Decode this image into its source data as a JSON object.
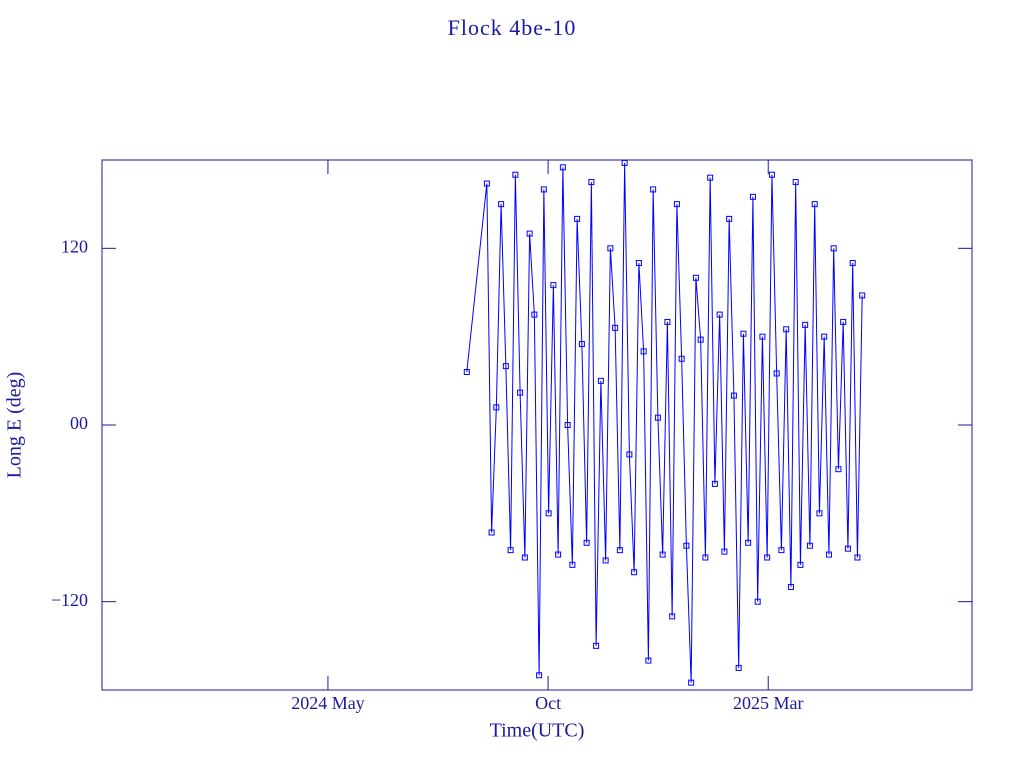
{
  "chart_data": {
    "type": "line",
    "title": "Flock 4be-10",
    "x_label": "Time(UTC)",
    "y_label": "Long E (deg)",
    "xlim": [
      2023.905,
      2025.553
    ],
    "xticks": [
      {
        "value": 2024.333,
        "label": "2024 May"
      },
      {
        "value": 2024.75,
        "label": "Oct"
      },
      {
        "value": 2025.167,
        "label": "2025 Mar"
      }
    ],
    "ylim": [
      -180,
      180
    ],
    "yticks": [
      {
        "value": -120,
        "label": "−120"
      },
      {
        "value": 0,
        "label": "00"
      },
      120
    ],
    "series": [
      {
        "name": "Long E",
        "color": "#0000ff",
        "x": [
          2024.596,
          2024.634,
          2024.643,
          2024.652,
          2024.661,
          2024.67,
          2024.679,
          2024.688,
          2024.697,
          2024.706,
          2024.715,
          2024.724,
          2024.733,
          2024.742,
          2024.751,
          2024.76,
          2024.769,
          2024.778,
          2024.787,
          2024.796,
          2024.805,
          2024.814,
          2024.823,
          2024.832,
          2024.841,
          2024.85,
          2024.859,
          2024.868,
          2024.877,
          2024.886,
          2024.895,
          2024.904,
          2024.913,
          2024.922,
          2024.931,
          2024.94,
          2024.949,
          2024.958,
          2024.967,
          2024.976,
          2024.985,
          2024.994,
          2025.003,
          2025.012,
          2025.021,
          2025.03,
          2025.039,
          2025.048,
          2025.057,
          2025.066,
          2025.075,
          2025.084,
          2025.093,
          2025.102,
          2025.111,
          2025.12,
          2025.129,
          2025.138,
          2025.147,
          2025.156,
          2025.165,
          2025.174,
          2025.183,
          2025.192,
          2025.201,
          2025.21,
          2025.219,
          2025.228,
          2025.237,
          2025.246,
          2025.255,
          2025.264,
          2025.273,
          2025.282,
          2025.291,
          2025.3,
          2025.309,
          2025.318,
          2025.327,
          2025.336,
          2025.345
        ],
        "values": [
          36,
          164,
          -73,
          12,
          150,
          40,
          -85,
          170,
          22,
          -90,
          130,
          75,
          -170,
          160,
          -60,
          95,
          -88,
          175,
          0,
          -95,
          140,
          55,
          -80,
          165,
          -150,
          30,
          -92,
          120,
          66,
          -85,
          178,
          -20,
          -100,
          110,
          50,
          -160,
          160,
          5,
          -88,
          70,
          -130,
          150,
          45,
          -82,
          -175,
          100,
          58,
          -90,
          168,
          -40,
          75,
          -86,
          140,
          20,
          -165,
          62,
          -80,
          155,
          -120,
          60,
          -90,
          170,
          35,
          -85,
          65,
          -110,
          165,
          -95,
          68,
          -82,
          150,
          -60,
          60,
          -88,
          120,
          -30,
          70,
          -84,
          110,
          -90,
          88
        ]
      }
    ]
  }
}
